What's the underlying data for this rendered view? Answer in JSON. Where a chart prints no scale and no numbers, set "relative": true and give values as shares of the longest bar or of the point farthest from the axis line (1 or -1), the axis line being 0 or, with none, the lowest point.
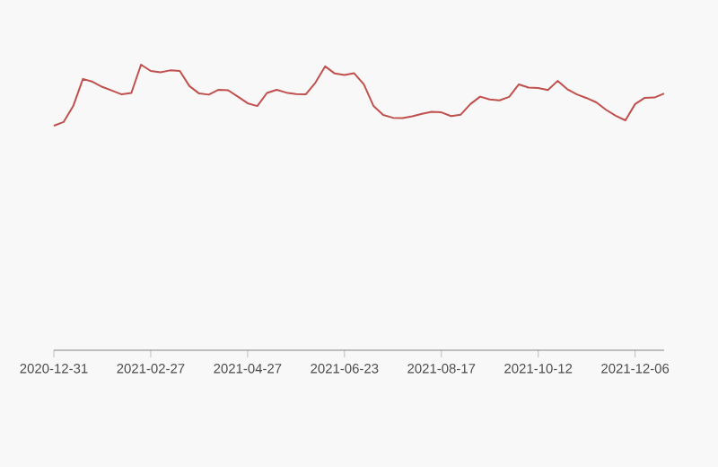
{
  "chart_data": {
    "type": "line",
    "relative": true,
    "categories": [
      "2020-12-31",
      null,
      null,
      null,
      null,
      null,
      null,
      null,
      null,
      null,
      "2021-02-27",
      null,
      null,
      null,
      null,
      null,
      null,
      null,
      null,
      null,
      "2021-04-27",
      null,
      null,
      null,
      null,
      null,
      null,
      null,
      null,
      null,
      "2021-06-23",
      null,
      null,
      null,
      null,
      null,
      null,
      null,
      null,
      null,
      "2021-08-17",
      null,
      null,
      null,
      null,
      null,
      null,
      null,
      null,
      null,
      "2021-10-12",
      null,
      null,
      null,
      null,
      null,
      null,
      null,
      null,
      null,
      "2021-12-06",
      null,
      null,
      null
    ],
    "series": [
      {
        "color": "#c0504d",
        "values": [
          0.786,
          0.799,
          0.855,
          0.95,
          0.94,
          0.922,
          0.909,
          0.896,
          0.901,
          1.0,
          0.978,
          0.973,
          0.98,
          0.978,
          0.925,
          0.899,
          0.895,
          0.912,
          0.91,
          0.888,
          0.865,
          0.855,
          0.901,
          0.912,
          0.902,
          0.897,
          0.896,
          0.937,
          0.994,
          0.969,
          0.964,
          0.97,
          0.931,
          0.855,
          0.824,
          0.814,
          0.813,
          0.819,
          0.828,
          0.835,
          0.833,
          0.82,
          0.825,
          0.862,
          0.888,
          0.878,
          0.875,
          0.887,
          0.931,
          0.92,
          0.918,
          0.911,
          0.943,
          0.914,
          0.896,
          0.883,
          0.868,
          0.842,
          0.821,
          0.805,
          0.862,
          0.884,
          0.885,
          0.899
        ]
      }
    ]
  }
}
